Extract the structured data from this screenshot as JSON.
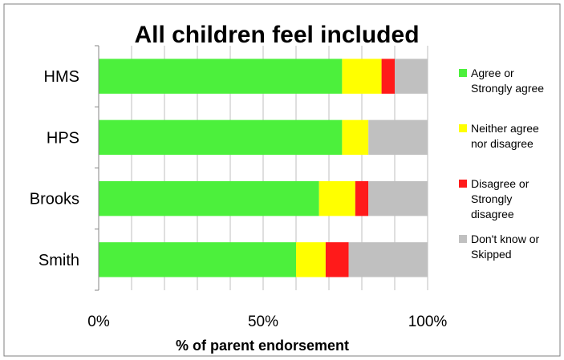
{
  "chart_data": {
    "type": "bar",
    "orientation": "horizontal",
    "stacked": true,
    "title": "All children feel included",
    "xlabel": "% of parent endorsement",
    "ylabel": "",
    "xlim": [
      0,
      100
    ],
    "x_ticks": [
      "0%",
      "50%",
      "100%"
    ],
    "grid": true,
    "legend_position": "right",
    "categories": [
      "HMS",
      "HPS",
      "Brooks",
      "Smith"
    ],
    "series": [
      {
        "name": "Agree or Strongly agree",
        "color": "#4cf03c",
        "values": [
          74,
          74,
          67,
          60
        ]
      },
      {
        "name": "Neither agree nor disagree",
        "color": "#ffff00",
        "values": [
          12,
          8,
          11,
          9
        ]
      },
      {
        "name": "Disagree or Strongly disagree",
        "color": "#ff1a1a",
        "values": [
          4,
          0,
          4,
          7
        ]
      },
      {
        "name": "Don't know or Skipped",
        "color": "#c0c0c0",
        "values": [
          10,
          18,
          18,
          24
        ]
      }
    ],
    "legend_lines": [
      [
        "Agree or",
        "Strongly agree"
      ],
      [
        "Neither agree",
        "nor disagree"
      ],
      [
        "Disagree or",
        "Strongly",
        "disagree"
      ],
      [
        "Don't know or",
        "Skipped"
      ]
    ]
  }
}
